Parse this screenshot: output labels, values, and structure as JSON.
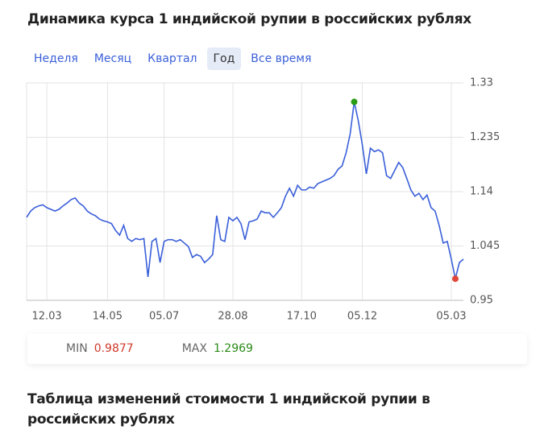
{
  "header": {
    "title": "Динамика курса 1 индийской рупии в российских рублях"
  },
  "tabs": {
    "items": [
      "Неделя",
      "Месяц",
      "Квартал",
      "Год",
      "Все время"
    ],
    "active": 3
  },
  "chart_data": {
    "type": "line",
    "categories": [
      null,
      null,
      null,
      null,
      null,
      "12.03",
      null,
      null,
      null,
      null,
      null,
      null,
      null,
      null,
      null,
      null,
      null,
      null,
      null,
      null,
      "14.05",
      null,
      null,
      null,
      null,
      null,
      null,
      null,
      null,
      null,
      null,
      null,
      null,
      null,
      "05.07",
      null,
      null,
      null,
      null,
      null,
      null,
      null,
      null,
      null,
      null,
      null,
      null,
      null,
      null,
      null,
      null,
      "28.08",
      null,
      null,
      null,
      null,
      null,
      null,
      null,
      null,
      null,
      null,
      null,
      null,
      null,
      null,
      null,
      null,
      "17.10",
      null,
      null,
      null,
      null,
      null,
      null,
      null,
      null,
      null,
      null,
      null,
      null,
      null,
      null,
      "05.12",
      null,
      null,
      null,
      null,
      null,
      null,
      null,
      null,
      null,
      null,
      null,
      null,
      null,
      null,
      null,
      null,
      null,
      null,
      null,
      null,
      null,
      "05.03",
      null,
      null,
      null
    ],
    "series": [
      {
        "color": "#3a5fd9",
        "values": [
          1.095,
          1.106,
          1.112,
          1.115,
          1.117,
          1.112,
          1.109,
          1.106,
          1.109,
          1.115,
          1.12,
          1.126,
          1.129,
          1.12,
          1.115,
          1.106,
          1.101,
          1.098,
          1.092,
          1.089,
          1.087,
          1.084,
          1.072,
          1.064,
          1.081,
          1.058,
          1.053,
          1.058,
          1.056,
          1.058,
          0.991,
          1.053,
          1.058,
          1.016,
          1.053,
          1.056,
          1.056,
          1.053,
          1.056,
          1.05,
          1.044,
          1.025,
          1.03,
          1.027,
          1.016,
          1.022,
          1.03,
          1.098,
          1.056,
          1.053,
          1.095,
          1.089,
          1.095,
          1.084,
          1.056,
          1.087,
          1.089,
          1.092,
          1.106,
          1.103,
          1.103,
          1.095,
          1.103,
          1.112,
          1.132,
          1.146,
          1.132,
          1.151,
          1.143,
          1.143,
          1.148,
          1.146,
          1.154,
          1.157,
          1.16,
          1.163,
          1.168,
          1.179,
          1.185,
          1.208,
          1.241,
          1.2969,
          1.264,
          1.222,
          1.171,
          1.216,
          1.21,
          1.213,
          1.208,
          1.168,
          1.163,
          1.177,
          1.191,
          1.182,
          1.163,
          1.143,
          1.132,
          1.137,
          1.126,
          1.134,
          1.112,
          1.106,
          1.081,
          1.05,
          1.053,
          1.022,
          0.9877,
          1.016,
          1.022
        ]
      }
    ],
    "ylim": [
      0.95,
      1.33
    ],
    "yticks": [
      0.95,
      1.045,
      1.14,
      1.235,
      1.33
    ],
    "grid": true,
    "max_color": "#2a9d14",
    "min_color": "#e0463a"
  },
  "stats": {
    "min_label": "MIN",
    "min": 0.9877,
    "min_color": "#d0392b",
    "max_label": "MAX",
    "max": 1.2969,
    "max_color": "#2a8a16"
  },
  "section": {
    "title": "Таблица изменений стоимости 1 индийской рупии в российских рублях"
  }
}
